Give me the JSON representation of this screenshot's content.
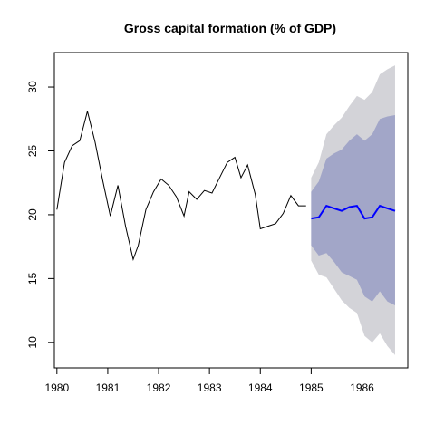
{
  "chart_data": {
    "type": "line",
    "title": "Gross capital formation (% of GDP)",
    "xlabel": "",
    "ylabel": "",
    "xlim": [
      1979.95,
      1986.9
    ],
    "ylim": [
      8.0,
      32.7
    ],
    "x_ticks": [
      1980,
      1981,
      1982,
      1983,
      1984,
      1985,
      1986
    ],
    "y_ticks": [
      10,
      15,
      20,
      25,
      30
    ],
    "grid": false,
    "legend": "none",
    "colors": {
      "history": "#000000",
      "forecast": "#0000ff",
      "band_outer": "#d3d3d8",
      "band_inner": "#a2a6c8"
    },
    "series": [
      {
        "role": "history",
        "x": [
          1980.0,
          1980.15,
          1980.3,
          1980.45,
          1980.6,
          1980.75,
          1980.9,
          1981.05,
          1981.2,
          1981.35,
          1981.5,
          1981.6,
          1981.75,
          1981.9,
          1982.05,
          1982.2,
          1982.35,
          1982.5,
          1982.6,
          1982.75,
          1982.9,
          1983.05,
          1983.2,
          1983.35,
          1983.5,
          1983.62,
          1983.75,
          1983.9,
          1984.0,
          1984.15,
          1984.3,
          1984.45,
          1984.6,
          1984.75,
          1984.9
        ],
        "values": [
          20.4,
          24.1,
          25.4,
          25.8,
          28.1,
          25.7,
          22.7,
          19.9,
          22.3,
          19.1,
          16.5,
          17.6,
          20.4,
          21.8,
          22.8,
          22.3,
          21.4,
          19.9,
          21.8,
          21.2,
          21.9,
          21.7,
          22.9,
          24.1,
          24.5,
          22.9,
          23.9,
          21.6,
          18.9,
          19.1,
          19.3,
          20.1,
          21.5,
          20.7,
          20.7
        ]
      },
      {
        "role": "forecast",
        "x": [
          1985.0,
          1985.15,
          1985.3,
          1985.45,
          1985.6,
          1985.75,
          1985.9,
          1986.05,
          1986.2,
          1986.35,
          1986.5,
          1986.65
        ],
        "values": [
          19.7,
          19.8,
          20.7,
          20.5,
          20.3,
          20.6,
          20.7,
          19.7,
          19.8,
          20.7,
          20.5,
          20.3
        ],
        "lo80": [
          17.6,
          16.8,
          17.0,
          16.3,
          15.5,
          15.2,
          14.9,
          13.6,
          13.2,
          14.0,
          13.2,
          12.9
        ],
        "hi80": [
          21.8,
          22.6,
          24.4,
          24.8,
          25.1,
          25.8,
          26.3,
          25.8,
          26.3,
          27.5,
          27.7,
          27.8
        ],
        "lo95": [
          16.4,
          15.3,
          15.1,
          14.2,
          13.3,
          12.7,
          12.3,
          10.5,
          10.0,
          10.7,
          9.7,
          9.0
        ],
        "hi95": [
          22.9,
          24.1,
          26.3,
          27.0,
          27.6,
          28.5,
          29.3,
          29.0,
          29.6,
          31.0,
          31.4,
          31.7
        ]
      }
    ]
  }
}
